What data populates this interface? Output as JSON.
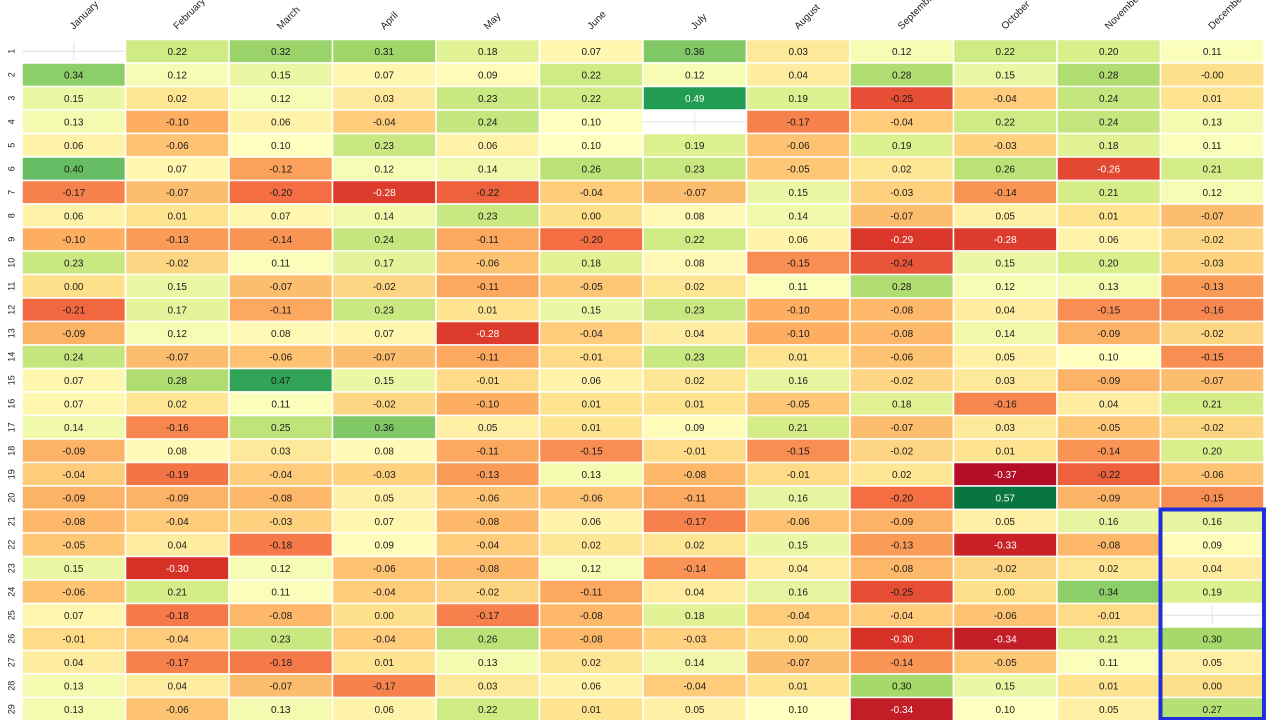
{
  "chart_data": {
    "type": "heatmap",
    "columns": [
      "January",
      "February",
      "March",
      "April",
      "May",
      "June",
      "July",
      "August",
      "September",
      "October",
      "November",
      "December"
    ],
    "rows": [
      "1",
      "2",
      "3",
      "4",
      "5",
      "6",
      "7",
      "8",
      "9",
      "10",
      "11",
      "12",
      "13",
      "14",
      "15",
      "16",
      "17",
      "18",
      "19",
      "20",
      "21",
      "22",
      "23",
      "24",
      "25",
      "26",
      "27",
      "28",
      "29"
    ],
    "values": [
      [
        null,
        0.22,
        0.32,
        0.31,
        0.18,
        0.07,
        0.36,
        0.03,
        0.12,
        0.22,
        0.2,
        0.11
      ],
      [
        0.34,
        0.12,
        0.15,
        0.07,
        0.09,
        0.22,
        0.12,
        0.04,
        0.28,
        0.15,
        0.28,
        -0.0
      ],
      [
        0.15,
        0.02,
        0.12,
        0.03,
        0.23,
        0.22,
        0.49,
        0.19,
        -0.25,
        -0.04,
        0.24,
        0.01
      ],
      [
        0.13,
        -0.1,
        0.06,
        -0.04,
        0.24,
        0.1,
        null,
        -0.17,
        -0.04,
        0.22,
        0.24,
        0.13
      ],
      [
        0.06,
        -0.06,
        0.1,
        0.23,
        0.06,
        0.1,
        0.19,
        -0.06,
        0.19,
        -0.03,
        0.18,
        0.11
      ],
      [
        0.4,
        0.07,
        -0.12,
        0.12,
        0.14,
        0.26,
        0.23,
        -0.05,
        0.02,
        0.26,
        -0.26,
        0.21
      ],
      [
        -0.17,
        -0.07,
        -0.2,
        -0.28,
        -0.22,
        -0.04,
        -0.07,
        0.15,
        -0.03,
        -0.14,
        0.21,
        0.12
      ],
      [
        0.06,
        0.01,
        0.07,
        0.14,
        0.23,
        0.0,
        0.08,
        0.14,
        -0.07,
        0.05,
        0.01,
        -0.07
      ],
      [
        -0.1,
        -0.13,
        -0.14,
        0.24,
        -0.11,
        -0.2,
        0.22,
        0.06,
        -0.29,
        -0.28,
        0.06,
        -0.02
      ],
      [
        0.23,
        -0.02,
        0.11,
        0.17,
        -0.06,
        0.18,
        0.08,
        -0.15,
        -0.24,
        0.15,
        0.2,
        -0.03
      ],
      [
        0.0,
        0.15,
        -0.07,
        -0.02,
        -0.11,
        -0.05,
        0.02,
        0.11,
        0.28,
        0.12,
        0.13,
        -0.13
      ],
      [
        -0.21,
        0.17,
        -0.11,
        0.23,
        0.01,
        0.15,
        0.23,
        -0.1,
        -0.08,
        0.04,
        -0.15,
        -0.16
      ],
      [
        -0.09,
        0.12,
        0.08,
        0.07,
        -0.28,
        -0.04,
        0.04,
        -0.1,
        -0.08,
        0.14,
        -0.09,
        -0.02
      ],
      [
        0.24,
        -0.07,
        -0.06,
        -0.07,
        -0.11,
        -0.01,
        0.23,
        0.01,
        -0.06,
        0.05,
        0.1,
        -0.15
      ],
      [
        0.07,
        0.28,
        0.47,
        0.15,
        -0.01,
        0.06,
        0.02,
        0.16,
        -0.02,
        0.03,
        -0.09,
        -0.07
      ],
      [
        0.07,
        0.02,
        0.11,
        -0.02,
        -0.1,
        0.01,
        0.01,
        -0.05,
        0.18,
        -0.16,
        0.04,
        0.21
      ],
      [
        0.14,
        -0.16,
        0.25,
        0.36,
        0.05,
        0.01,
        0.09,
        0.21,
        -0.07,
        0.03,
        -0.05,
        -0.02
      ],
      [
        -0.09,
        0.08,
        0.03,
        0.08,
        -0.11,
        -0.15,
        -0.01,
        -0.15,
        -0.02,
        0.01,
        -0.14,
        0.2
      ],
      [
        -0.04,
        -0.19,
        -0.04,
        -0.03,
        -0.13,
        0.13,
        -0.08,
        -0.01,
        0.02,
        -0.37,
        -0.22,
        -0.06
      ],
      [
        -0.09,
        -0.09,
        -0.08,
        0.05,
        -0.06,
        -0.06,
        -0.11,
        0.16,
        -0.2,
        0.57,
        -0.09,
        -0.15
      ],
      [
        -0.08,
        -0.04,
        -0.03,
        0.07,
        -0.08,
        0.06,
        -0.17,
        -0.06,
        -0.09,
        0.05,
        0.16,
        0.16
      ],
      [
        -0.05,
        0.04,
        -0.18,
        0.09,
        -0.04,
        0.02,
        0.02,
        0.15,
        -0.13,
        -0.33,
        -0.08,
        0.09
      ],
      [
        0.15,
        -0.3,
        0.12,
        -0.06,
        -0.08,
        0.12,
        -0.14,
        0.04,
        -0.08,
        -0.02,
        0.02,
        0.04
      ],
      [
        -0.06,
        0.21,
        0.11,
        -0.04,
        -0.02,
        -0.11,
        0.04,
        0.16,
        -0.25,
        0.0,
        0.34,
        0.19
      ],
      [
        0.07,
        -0.18,
        -0.08,
        0.0,
        -0.17,
        -0.08,
        0.18,
        -0.04,
        -0.04,
        -0.06,
        -0.01,
        null
      ],
      [
        -0.01,
        -0.04,
        0.23,
        -0.04,
        0.26,
        -0.08,
        -0.03,
        0.0,
        -0.3,
        -0.34,
        0.21,
        0.3
      ],
      [
        0.04,
        -0.17,
        -0.18,
        0.01,
        0.13,
        0.02,
        0.14,
        -0.07,
        -0.14,
        -0.05,
        0.11,
        0.05
      ],
      [
        0.13,
        0.04,
        -0.07,
        -0.17,
        0.03,
        0.06,
        -0.04,
        0.01,
        0.3,
        0.15,
        0.01,
        0.0
      ],
      [
        0.13,
        -0.06,
        0.13,
        0.06,
        0.22,
        0.01,
        0.05,
        0.1,
        -0.34,
        0.1,
        0.05,
        0.27
      ]
    ],
    "colormap": "RdYlGn",
    "value_range": [
      -0.4,
      0.6
    ],
    "highlight": {
      "column": "December",
      "from_row": "21",
      "to_row": "29",
      "color": "#1f2fe0"
    },
    "title": "",
    "xlabel": "",
    "ylabel": ""
  }
}
